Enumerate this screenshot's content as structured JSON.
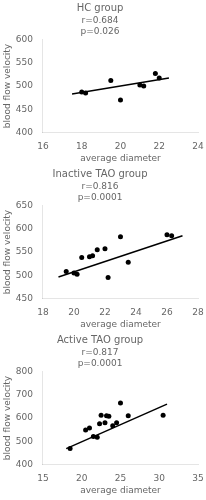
{
  "chart_data": [
    {
      "type": "scatter",
      "title": "HC group",
      "annotations": [
        "r=0.684",
        "p=0.026"
      ],
      "xlabel": "average diameter",
      "ylabel": "blood flow velocity",
      "xlim": [
        16,
        24
      ],
      "ylim": [
        400,
        600
      ],
      "xticks": [
        16,
        18,
        20,
        22,
        24
      ],
      "yticks": [
        400,
        450,
        500,
        550,
        600
      ],
      "grid": false,
      "series": [
        {
          "type": "scatter",
          "color": "#000000",
          "x": [
            18.0,
            18.2,
            19.5,
            20.0,
            21.0,
            21.2,
            21.8,
            22.0
          ],
          "values": [
            487,
            485,
            512,
            470,
            502,
            500,
            527,
            517
          ]
        },
        {
          "type": "line",
          "color": "#000000",
          "x": [
            17.5,
            22.5
          ],
          "values": [
            483,
            517
          ]
        }
      ]
    },
    {
      "type": "scatter",
      "title": "Inactive TAO group",
      "annotations": [
        "r=0.816",
        "p=0.0001"
      ],
      "xlabel": "average diameter",
      "ylabel": "blood flow velocity",
      "xlim": [
        18,
        28
      ],
      "ylim": [
        450,
        650
      ],
      "xticks": [
        18,
        20,
        22,
        24,
        26,
        28
      ],
      "yticks": [
        450,
        500,
        550,
        600,
        650
      ],
      "grid": false,
      "series": [
        {
          "type": "scatter",
          "color": "#000000",
          "x": [
            19.5,
            20.0,
            20.2,
            20.5,
            21.0,
            21.2,
            21.5,
            22.0,
            22.2,
            23.0,
            23.5,
            26.0,
            26.3
          ],
          "values": [
            508,
            505,
            502,
            538,
            540,
            542,
            555,
            557,
            495,
            583,
            528,
            587,
            585
          ]
        },
        {
          "type": "line",
          "color": "#000000",
          "x": [
            19.0,
            27.0
          ],
          "values": [
            496,
            585
          ]
        }
      ]
    },
    {
      "type": "scatter",
      "title": "Active TAO group",
      "annotations": [
        "r=0.817",
        "p=0.0001"
      ],
      "xlabel": "average diameter",
      "ylabel": "blood flow velocity",
      "xlim": [
        15,
        35
      ],
      "ylim": [
        400,
        800
      ],
      "xticks": [
        15,
        20,
        25,
        30,
        35
      ],
      "yticks": [
        400,
        500,
        600,
        700,
        800
      ],
      "grid": false,
      "series": [
        {
          "type": "scatter",
          "color": "#000000",
          "x": [
            18.5,
            20.5,
            21.0,
            21.5,
            22.0,
            22.3,
            22.5,
            23.0,
            23.2,
            23.5,
            24.0,
            24.5,
            25.0,
            26.0,
            30.5
          ],
          "values": [
            468,
            548,
            557,
            520,
            517,
            575,
            612,
            580,
            610,
            608,
            567,
            580,
            665,
            610,
            612
          ]
        },
        {
          "type": "line",
          "color": "#000000",
          "x": [
            18.0,
            31.0
          ],
          "values": [
            468,
            660
          ]
        }
      ]
    }
  ]
}
